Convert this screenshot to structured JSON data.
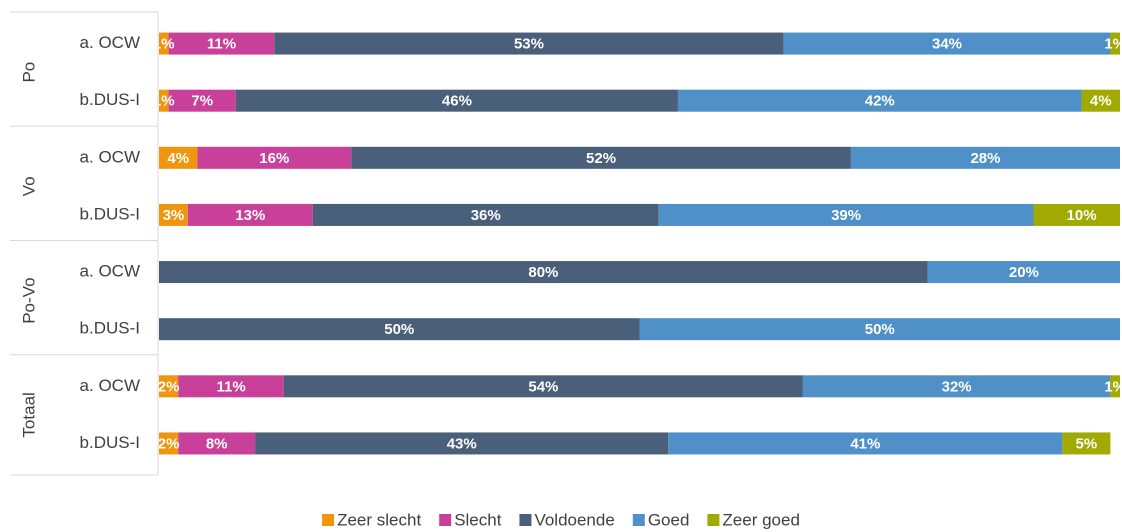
{
  "chart_data": {
    "type": "stacked_bar_horizontal",
    "groups": [
      "Po",
      "Vo",
      "Po-Vo",
      "Totaal"
    ],
    "categories": [
      "a. OCW",
      "b.DUS-I",
      "a. OCW",
      "b.DUS-I",
      "a. OCW",
      "b.DUS-I",
      "a. OCW",
      "b.DUS-I"
    ],
    "xlim": [
      0,
      100
    ],
    "legend": "bottom",
    "series": [
      {
        "name": "Zeer slecht",
        "color": "#f0960e",
        "values": [
          1,
          1,
          4,
          3,
          null,
          null,
          2,
          2
        ],
        "value_labels": [
          "1%",
          "1%",
          "4%",
          "3%",
          null,
          null,
          "2%",
          "2%"
        ]
      },
      {
        "name": "Slecht",
        "color": "#c8409a",
        "values": [
          11,
          7,
          16,
          13,
          null,
          null,
          11,
          8
        ],
        "value_labels": [
          "11%",
          "7%",
          "16%",
          "13%",
          null,
          null,
          "11%",
          "8%"
        ]
      },
      {
        "name": "Voldoende",
        "color": "#4a5f7a",
        "values": [
          53,
          46,
          52,
          36,
          80,
          50,
          54,
          43
        ],
        "value_labels": [
          "53%",
          "46%",
          "52%",
          "36%",
          "80%",
          "50%",
          "54%",
          "43%"
        ]
      },
      {
        "name": "Goed",
        "color": "#4f90c8",
        "values": [
          34,
          42,
          28,
          39,
          20,
          50,
          32,
          41
        ],
        "value_labels": [
          "34%",
          "42%",
          "28%",
          "39%",
          "20%",
          "50%",
          "32%",
          "41%"
        ]
      },
      {
        "name": "Zeer goed",
        "color": "#a0aa00",
        "values": [
          1,
          4,
          null,
          10,
          null,
          null,
          1,
          5
        ],
        "value_labels": [
          "1%",
          "4%",
          null,
          "10%",
          null,
          null,
          "1%",
          "5%"
        ]
      }
    ]
  }
}
